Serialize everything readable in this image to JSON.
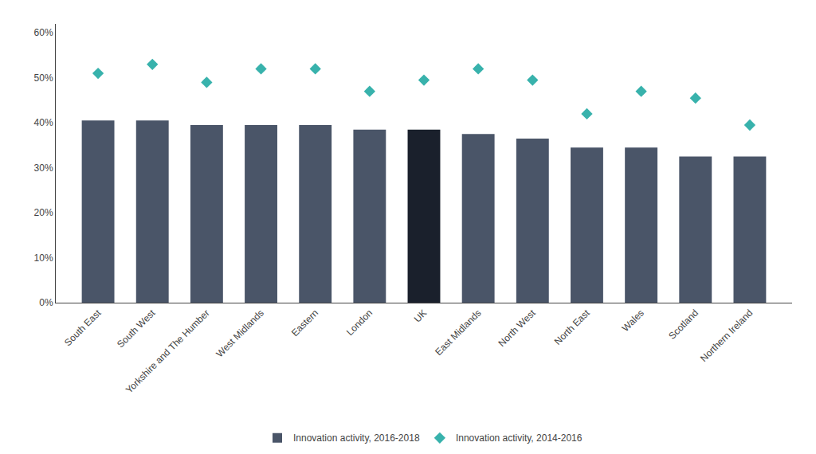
{
  "chart_data": {
    "type": "bar",
    "categories": [
      "South East",
      "South West",
      "Yorkshire and The Humber",
      "West Midlands",
      "Eastern",
      "London",
      "UK",
      "East Midlands",
      "North West",
      "North East",
      "Wales",
      "Scotland",
      "Northern Ireland"
    ],
    "series": [
      {
        "name": "Innovation activity, 2016-2018",
        "type": "bar",
        "colors": [
          "#4a5568",
          "#4a5568",
          "#4a5568",
          "#4a5568",
          "#4a5568",
          "#4a5568",
          "#1a202c",
          "#4a5568",
          "#4a5568",
          "#4a5568",
          "#4a5568",
          "#4a5568",
          "#4a5568"
        ],
        "values": [
          40.5,
          40.5,
          39.5,
          39.5,
          39.5,
          38.5,
          38.5,
          37.5,
          36.5,
          34.5,
          34.5,
          32.5,
          32.5
        ]
      },
      {
        "name": "Innovation activity, 2014-2016",
        "type": "scatter",
        "marker": "diamond",
        "color": "#38b2ac",
        "values": [
          51.0,
          53.0,
          49.0,
          52.0,
          52.0,
          47.0,
          49.5,
          52.0,
          49.5,
          42.0,
          47.0,
          45.5,
          39.5
        ]
      }
    ],
    "ylim": [
      0,
      62
    ],
    "yticks": [
      {
        "value": 0,
        "label": "0%"
      },
      {
        "value": 10,
        "label": "10%"
      },
      {
        "value": 20,
        "label": "20%"
      },
      {
        "value": 30,
        "label": "30%"
      },
      {
        "value": 40,
        "label": "40%"
      },
      {
        "value": 50,
        "label": "50%"
      },
      {
        "value": 60,
        "label": "60%"
      }
    ],
    "grid": false,
    "legend": "bottom"
  }
}
